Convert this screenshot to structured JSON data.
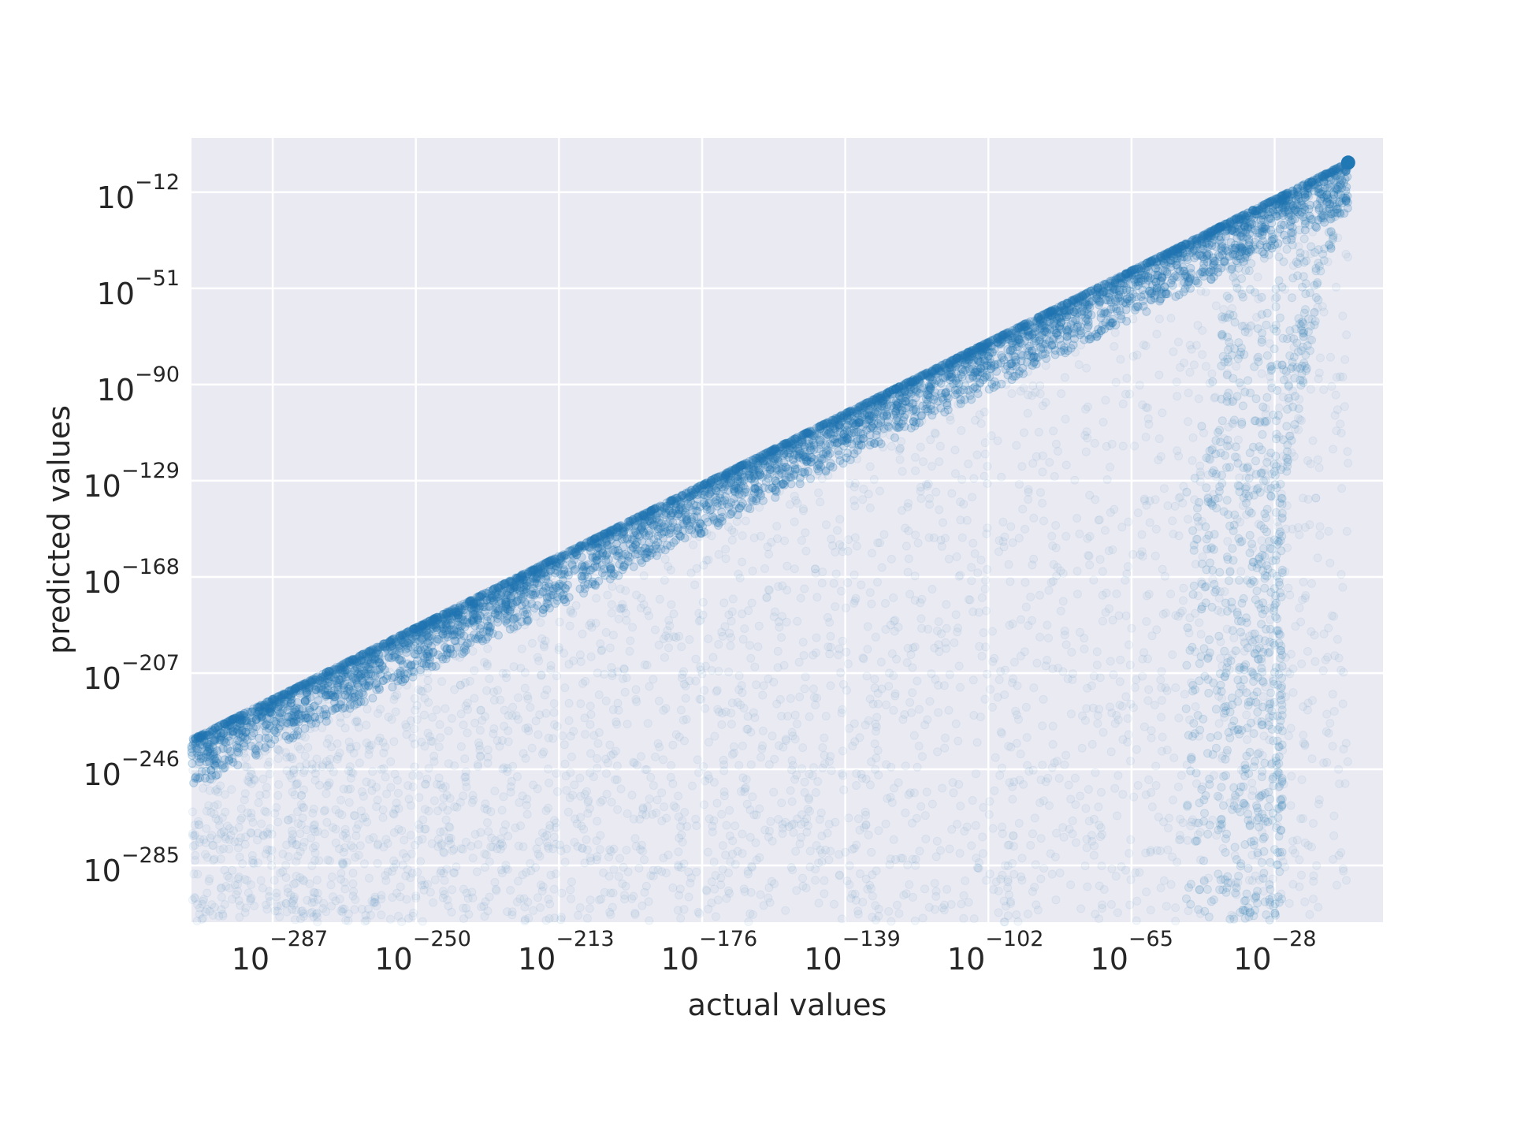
{
  "chart_data": {
    "type": "scatter",
    "title": "",
    "xlabel": "actual values",
    "ylabel": "predicted values",
    "xscale": "log",
    "yscale": "log",
    "grid": true,
    "background_color": "#eaeaf2",
    "marker_color": "#1f77b4",
    "marker_alpha": 0.05,
    "xlim_log10": [
      -308,
      0
    ],
    "ylim_log10": [
      -308,
      10
    ],
    "x_ticks": [
      {
        "base": "10",
        "exp": "−287",
        "log10": -287
      },
      {
        "base": "10",
        "exp": "−250",
        "log10": -250
      },
      {
        "base": "10",
        "exp": "−213",
        "log10": -213
      },
      {
        "base": "10",
        "exp": "−176",
        "log10": -176
      },
      {
        "base": "10",
        "exp": "−139",
        "log10": -139
      },
      {
        "base": "10",
        "exp": "−102",
        "log10": -102
      },
      {
        "base": "10",
        "exp": "−65",
        "log10": -65
      },
      {
        "base": "10",
        "exp": "−28",
        "log10": -28
      }
    ],
    "y_ticks": [
      {
        "base": "10",
        "exp": "−12",
        "log10": -12
      },
      {
        "base": "10",
        "exp": "−51",
        "log10": -51
      },
      {
        "base": "10",
        "exp": "−90",
        "log10": -90
      },
      {
        "base": "10",
        "exp": "−129",
        "log10": -129
      },
      {
        "base": "10",
        "exp": "−168",
        "log10": -168
      },
      {
        "base": "10",
        "exp": "−207",
        "log10": -207
      },
      {
        "base": "10",
        "exp": "−246",
        "log10": -246
      },
      {
        "base": "10",
        "exp": "−285",
        "log10": -285
      }
    ],
    "distribution": {
      "upper_bound_line": {
        "x_log10": [
          -308,
          -9
        ],
        "y_log10": [
          -234,
          0
        ]
      },
      "apex_log10": {
        "x": -9,
        "y": 0
      },
      "right_edge_line": {
        "x_log10": [
          -9,
          -26
        ],
        "y_log10": [
          0,
          -134
        ]
      },
      "description_points_generated": 9000
    }
  }
}
